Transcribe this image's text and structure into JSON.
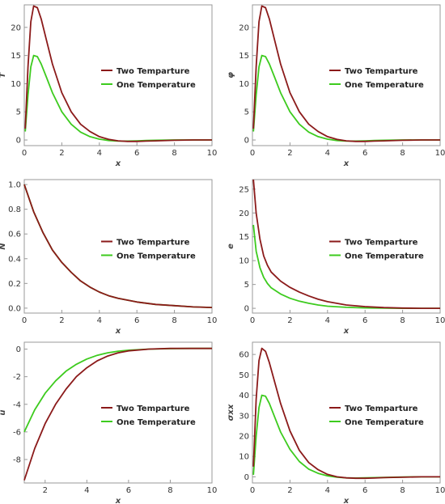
{
  "legend": {
    "two_label": "Two Temparture",
    "one_label": "One Temperature",
    "two_color": "#8B1A1A",
    "one_color": "#3DCB1E"
  },
  "chart_data": [
    {
      "type": "line",
      "ylabel": "T",
      "xlabel": "x",
      "xlim": [
        0,
        10
      ],
      "ylim": [
        -1,
        24
      ],
      "xticks": [
        0,
        2,
        4,
        6,
        8,
        10
      ],
      "yticks": [
        0,
        5,
        10,
        15,
        20
      ],
      "legend_position": "right-center",
      "series": [
        {
          "name": "Two Temparture",
          "color": "#8B1A1A",
          "x": [
            0.05,
            0.2,
            0.35,
            0.5,
            0.7,
            0.9,
            1.2,
            1.5,
            2,
            2.5,
            3,
            3.5,
            4,
            4.5,
            5,
            5.5,
            6,
            6.5,
            7,
            8,
            9,
            10
          ],
          "y": [
            2,
            13,
            21,
            23.8,
            23.5,
            21.5,
            17.5,
            13.5,
            8.4,
            5,
            2.8,
            1.5,
            0.6,
            0.1,
            -0.15,
            -0.25,
            -0.25,
            -0.2,
            -0.15,
            -0.05,
            0,
            0
          ]
        },
        {
          "name": "One Temperature",
          "color": "#3DCB1E",
          "x": [
            0.05,
            0.2,
            0.35,
            0.5,
            0.7,
            0.9,
            1.2,
            1.5,
            2,
            2.5,
            3,
            3.5,
            4,
            4.5,
            5,
            5.5,
            6,
            6.5,
            7,
            8,
            9,
            10
          ],
          "y": [
            1.5,
            8,
            13,
            15,
            14.8,
            13.5,
            11,
            8.4,
            5,
            2.8,
            1.4,
            0.6,
            0.15,
            -0.1,
            -0.2,
            -0.2,
            -0.15,
            -0.1,
            -0.05,
            0,
            0,
            0
          ]
        }
      ]
    },
    {
      "type": "line",
      "ylabel": "φ",
      "xlabel": "x",
      "xlim": [
        0,
        10
      ],
      "ylim": [
        -1,
        24
      ],
      "xticks": [
        0,
        2,
        4,
        6,
        8,
        10
      ],
      "yticks": [
        0,
        5,
        10,
        15,
        20
      ],
      "legend_position": "right-center",
      "series": [
        {
          "name": "Two Temparture",
          "color": "#8B1A1A",
          "x": [
            0.05,
            0.2,
            0.35,
            0.5,
            0.7,
            0.9,
            1.2,
            1.5,
            2,
            2.5,
            3,
            3.5,
            4,
            4.5,
            5,
            5.5,
            6,
            6.5,
            7,
            8,
            9,
            10
          ],
          "y": [
            2,
            13,
            21,
            23.8,
            23.5,
            21.5,
            17.5,
            13.5,
            8.4,
            5,
            2.8,
            1.5,
            0.6,
            0.1,
            -0.15,
            -0.25,
            -0.25,
            -0.2,
            -0.15,
            -0.05,
            0,
            0
          ]
        },
        {
          "name": "One Temperature",
          "color": "#3DCB1E",
          "x": [
            0.05,
            0.2,
            0.35,
            0.5,
            0.7,
            0.9,
            1.2,
            1.5,
            2,
            2.5,
            3,
            3.5,
            4,
            4.5,
            5,
            5.5,
            6,
            6.5,
            7,
            8,
            9,
            10
          ],
          "y": [
            1.5,
            8,
            13,
            15,
            14.8,
            13.5,
            11,
            8.4,
            5,
            2.8,
            1.4,
            0.6,
            0.15,
            -0.1,
            -0.2,
            -0.2,
            -0.15,
            -0.1,
            -0.05,
            0,
            0,
            0
          ]
        }
      ]
    },
    {
      "type": "line",
      "ylabel": "N",
      "xlabel": "x",
      "xlim": [
        0,
        10
      ],
      "ylim": [
        -0.04,
        1.04
      ],
      "xticks": [
        0,
        2,
        4,
        6,
        8,
        10
      ],
      "yticks": [
        0.0,
        0.2,
        0.4,
        0.6,
        0.8,
        1.0
      ],
      "ytick_labels": [
        "0.0",
        "0.2",
        "0.4",
        "0.6",
        "0.8",
        "1.0"
      ],
      "legend_position": "right-center",
      "series": [
        {
          "name": "Two Temparture",
          "color": "#8B1A1A",
          "x": [
            0,
            0.5,
            1,
            1.5,
            2,
            2.5,
            3,
            3.5,
            4,
            4.5,
            5,
            6,
            7,
            8,
            9,
            10
          ],
          "y": [
            1.0,
            0.78,
            0.61,
            0.47,
            0.37,
            0.29,
            0.22,
            0.17,
            0.13,
            0.1,
            0.08,
            0.05,
            0.03,
            0.02,
            0.01,
            0.005
          ]
        },
        {
          "name": "One Temperature",
          "color": "#3DCB1E",
          "x": [
            0,
            0.5,
            1,
            1.5,
            2,
            2.5,
            3,
            3.5,
            4,
            4.5,
            5,
            6,
            7,
            8,
            9,
            10
          ],
          "y": [
            1.0,
            0.78,
            0.61,
            0.47,
            0.37,
            0.29,
            0.22,
            0.17,
            0.13,
            0.1,
            0.08,
            0.05,
            0.03,
            0.02,
            0.01,
            0.005
          ]
        }
      ]
    },
    {
      "type": "line",
      "ylabel": "e",
      "xlabel": "x",
      "xlim": [
        0,
        10
      ],
      "ylim": [
        -1,
        27
      ],
      "xticks": [
        0,
        2,
        4,
        6,
        8,
        10
      ],
      "yticks": [
        0,
        5,
        10,
        15,
        20,
        25
      ],
      "legend_position": "right-center",
      "series": [
        {
          "name": "Two Temparture",
          "color": "#8B1A1A",
          "x": [
            0.05,
            0.2,
            0.4,
            0.6,
            0.8,
            1,
            1.5,
            2,
            2.5,
            3,
            3.5,
            4,
            5,
            6,
            7,
            8,
            9,
            10
          ],
          "y": [
            27,
            20,
            14.5,
            11,
            9,
            7.6,
            5.7,
            4.4,
            3.4,
            2.6,
            1.9,
            1.4,
            0.7,
            0.35,
            0.15,
            0.05,
            0,
            0
          ]
        },
        {
          "name": "One Temperature",
          "color": "#3DCB1E",
          "x": [
            0.05,
            0.2,
            0.4,
            0.6,
            0.8,
            1,
            1.5,
            2,
            2.5,
            3,
            3.5,
            4,
            5,
            6,
            7,
            8,
            9,
            10
          ],
          "y": [
            17.5,
            12,
            8.5,
            6.5,
            5.2,
            4.3,
            3,
            2.1,
            1.5,
            1.05,
            0.7,
            0.45,
            0.2,
            0.08,
            0.03,
            0,
            0,
            0
          ]
        }
      ]
    },
    {
      "type": "line",
      "ylabel": "u",
      "xlabel": "x",
      "xlim": [
        1,
        10
      ],
      "ylim": [
        -9.7,
        0.5
      ],
      "xticks": [
        2,
        4,
        6,
        8,
        10
      ],
      "yticks": [
        -8,
        -6,
        -4,
        -2,
        0
      ],
      "legend_position": "right-center",
      "series": [
        {
          "name": "Two Temparture",
          "color": "#8B1A1A",
          "x": [
            1,
            1.5,
            2,
            2.5,
            3,
            3.5,
            4,
            4.5,
            5,
            5.5,
            6,
            7,
            8,
            9,
            10
          ],
          "y": [
            -9.5,
            -7.2,
            -5.4,
            -4,
            -2.9,
            -2,
            -1.35,
            -0.85,
            -0.5,
            -0.27,
            -0.13,
            0,
            0.05,
            0.05,
            0.05
          ]
        },
        {
          "name": "One Temperature",
          "color": "#3DCB1E",
          "x": [
            1,
            1.5,
            2,
            2.5,
            3,
            3.5,
            4,
            4.5,
            5,
            5.5,
            6,
            7,
            8,
            9,
            10
          ],
          "y": [
            -6,
            -4.4,
            -3.2,
            -2.3,
            -1.6,
            -1.1,
            -0.72,
            -0.45,
            -0.27,
            -0.15,
            -0.08,
            0,
            0.03,
            0.05,
            0.05
          ]
        }
      ]
    },
    {
      "type": "line",
      "ylabel": "σxx",
      "xlabel": "x",
      "xlim": [
        0,
        10
      ],
      "ylim": [
        -3,
        66
      ],
      "xticks": [
        0,
        2,
        4,
        6,
        8,
        10
      ],
      "yticks": [
        0,
        10,
        20,
        30,
        40,
        50,
        60
      ],
      "legend_position": "right-center",
      "series": [
        {
          "name": "Two Temparture",
          "color": "#8B1A1A",
          "x": [
            0.05,
            0.2,
            0.35,
            0.5,
            0.7,
            0.9,
            1.2,
            1.5,
            2,
            2.5,
            3,
            3.5,
            4,
            4.5,
            5,
            5.5,
            6,
            6.5,
            7,
            8,
            9,
            10
          ],
          "y": [
            5,
            38,
            57,
            63,
            61.5,
            56,
            46,
            36,
            22.5,
            13,
            7,
            3.5,
            1.2,
            0,
            -0.5,
            -0.7,
            -0.7,
            -0.6,
            -0.4,
            -0.2,
            0,
            0
          ]
        },
        {
          "name": "One Temperature",
          "color": "#3DCB1E",
          "x": [
            0.05,
            0.2,
            0.35,
            0.5,
            0.7,
            0.9,
            1.2,
            1.5,
            2,
            2.5,
            3,
            3.5,
            4,
            4.5,
            5,
            5.5,
            6,
            6.5,
            7,
            8,
            9,
            10
          ],
          "y": [
            1,
            20,
            34,
            40,
            39.5,
            36,
            29,
            22,
            13.5,
            7.5,
            3.8,
            1.7,
            0.5,
            -0.2,
            -0.5,
            -0.6,
            -0.5,
            -0.4,
            -0.3,
            -0.1,
            0,
            0
          ]
        }
      ]
    }
  ]
}
